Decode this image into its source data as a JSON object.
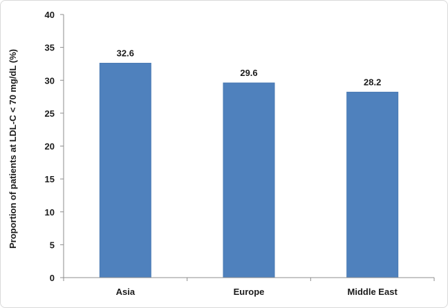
{
  "chart_data": {
    "type": "bar",
    "categories": [
      "Asia",
      "Europe",
      "Middle East"
    ],
    "values": [
      32.6,
      29.6,
      28.2
    ],
    "data_labels": [
      "32.6",
      "29.6",
      "28.2"
    ],
    "title": "",
    "xlabel": "",
    "ylabel": "Proportion of patients at LDL-C < 70 mg/dL (%)",
    "ylim": [
      0,
      40
    ],
    "yticks": [
      0,
      5,
      10,
      15,
      20,
      25,
      30,
      35,
      40
    ],
    "grid": false,
    "legend": "none",
    "bar_color": "#4f81bd"
  }
}
